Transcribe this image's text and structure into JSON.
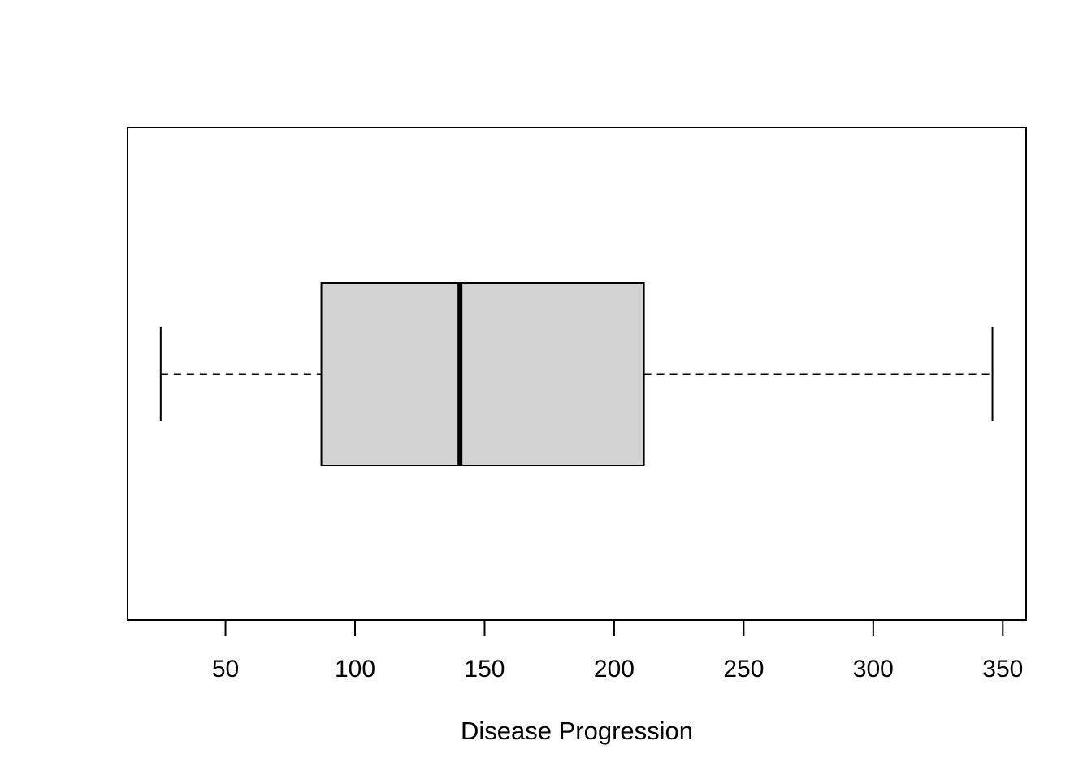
{
  "chart_data": {
    "type": "boxplot",
    "orientation": "horizontal",
    "title": "",
    "xlabel": "Disease Progression",
    "ylabel": "",
    "xlim": [
      12.2,
      359.0
    ],
    "xticks": [
      50,
      100,
      150,
      200,
      250,
      300,
      350
    ],
    "xtick_labels": [
      "50",
      "100",
      "150",
      "200",
      "250",
      "300",
      "350"
    ],
    "grid": false,
    "legend": "none",
    "box": {
      "whisker_low": 25,
      "q1": 87,
      "median": 140.5,
      "q3": 211.5,
      "whisker_high": 346,
      "fill_color": "#d3d3d3",
      "line_color": "#000000"
    }
  }
}
